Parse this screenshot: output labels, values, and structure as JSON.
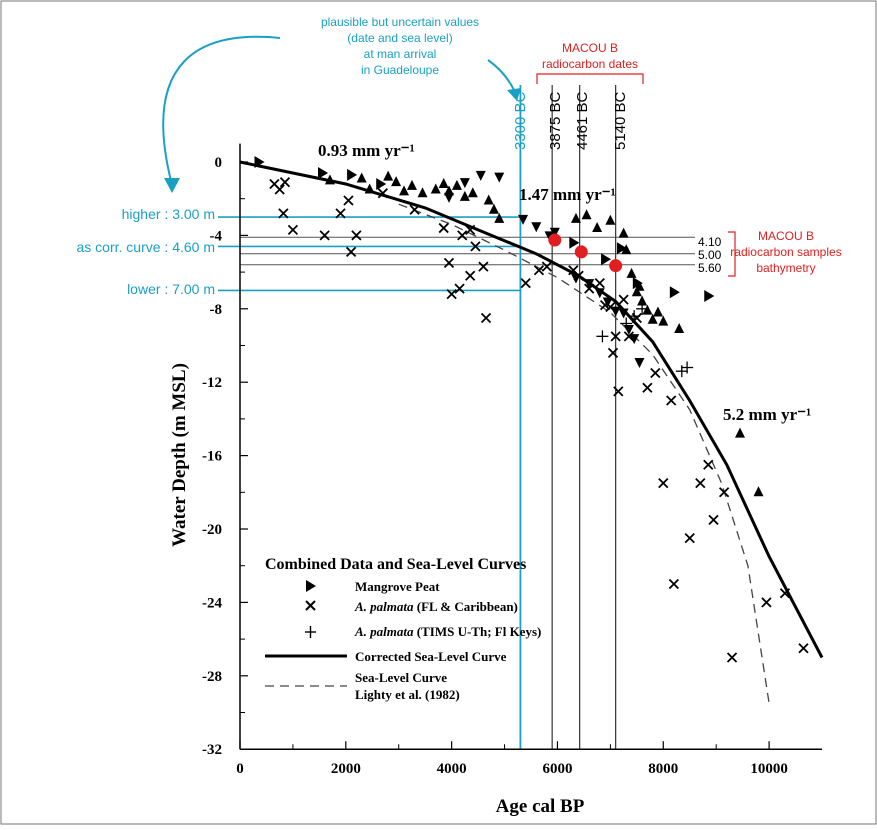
{
  "chart_data": {
    "type": "scatter",
    "xlabel": "Age cal BP",
    "ylabel": "Water Depth (m MSL)",
    "xlim": [
      0,
      11000
    ],
    "ylim": [
      -32,
      1
    ],
    "xticks": [
      "0",
      "2000",
      "4000",
      "6000",
      "8000",
      "10000"
    ],
    "yticks": [
      "0",
      "-4",
      "-8",
      "-12",
      "-16",
      "-20",
      "-24",
      "-28",
      "-32"
    ],
    "xtick_values": [
      0,
      2000,
      4000,
      6000,
      8000,
      10000
    ],
    "ytick_values": [
      0,
      -4,
      -8,
      -12,
      -16,
      -20,
      -24,
      -28,
      -32
    ],
    "legend": {
      "title": "Combined Data and Sea-Level Curves",
      "entries": [
        {
          "label": "Mangrove Peat",
          "italic_prefix": "",
          "marker": "triangle-right"
        },
        {
          "label": " (FL & Caribbean)",
          "italic_prefix": "A. palmata",
          "marker": "x"
        },
        {
          "label": " (TIMS U-Th; Fl Keys)",
          "italic_prefix": "A. palmata",
          "marker": "plus"
        },
        {
          "label": "Corrected Sea-Level Curve",
          "italic_prefix": "",
          "marker": "solid-line"
        },
        {
          "label": "Sea-Level Curve",
          "label2": "Lighty et al. (1982)",
          "italic_prefix": "",
          "marker": "dashed-line"
        }
      ]
    },
    "rates": [
      "0.93 mm yr⁻¹",
      "1.47 mm yr⁻¹",
      "5.2 mm yr⁻¹"
    ],
    "series": [
      {
        "name": "Corrected Sea-Level Curve",
        "style": "solid",
        "points": [
          [
            0,
            0
          ],
          [
            2000,
            -1.2
          ],
          [
            3500,
            -2.5
          ],
          [
            4500,
            -3.7
          ],
          [
            5600,
            -5.0
          ],
          [
            6400,
            -6.2
          ],
          [
            7100,
            -7.6
          ],
          [
            7800,
            -9.8
          ],
          [
            8500,
            -13
          ],
          [
            9200,
            -16.5
          ],
          [
            10000,
            -21.5
          ],
          [
            11000,
            -27
          ]
        ]
      },
      {
        "name": "Sea-Level Curve Lighty et al. (1982)",
        "style": "dashed",
        "points": [
          [
            3000,
            -2.3
          ],
          [
            4000,
            -3.4
          ],
          [
            5000,
            -4.8
          ],
          [
            6000,
            -6.3
          ],
          [
            7000,
            -8.2
          ],
          [
            7800,
            -10.5
          ],
          [
            8500,
            -13.5
          ],
          [
            9100,
            -17.5
          ],
          [
            9600,
            -22
          ],
          [
            10000,
            -29.5
          ]
        ]
      },
      {
        "name": "Mangrove Peat",
        "marker": "triangle-right",
        "points": [
          [
            350,
            0
          ],
          [
            1550,
            -0.6
          ],
          [
            2100,
            -0.7
          ],
          [
            2650,
            -1.2
          ],
          [
            6300,
            -4.4
          ],
          [
            7200,
            -4.7
          ],
          [
            7500,
            -6.6
          ],
          [
            8200,
            -7.1
          ],
          [
            8850,
            -7.3
          ],
          [
            6900,
            -5.3
          ]
        ]
      },
      {
        "name": "Mangrove Peat (upward)",
        "marker": "triangle-up",
        "points": [
          [
            1700,
            -1.0
          ],
          [
            2300,
            -0.9
          ],
          [
            2450,
            -1.5
          ],
          [
            2800,
            -0.8
          ],
          [
            2950,
            -1.1
          ],
          [
            3100,
            -1.6
          ],
          [
            3250,
            -1.3
          ],
          [
            3450,
            -1.7
          ],
          [
            3700,
            -1.5
          ],
          [
            3850,
            -1.2
          ],
          [
            3950,
            -1.6
          ],
          [
            4100,
            -1.3
          ],
          [
            4250,
            -1.9
          ],
          [
            4400,
            -1.7
          ],
          [
            4700,
            -2.1
          ],
          [
            4800,
            -2.6
          ],
          [
            4900,
            -3.1
          ],
          [
            6350,
            -3.1
          ],
          [
            6550,
            -2.9
          ],
          [
            6750,
            -3.6
          ],
          [
            7000,
            -3.2
          ],
          [
            7250,
            -3.9
          ],
          [
            7300,
            -4.8
          ],
          [
            7400,
            -6.1
          ],
          [
            7500,
            -7.1
          ],
          [
            7550,
            -6.8
          ],
          [
            7600,
            -7.6
          ],
          [
            7700,
            -8.1
          ],
          [
            7800,
            -8.6
          ],
          [
            7900,
            -8.2
          ],
          [
            8000,
            -8.7
          ],
          [
            8300,
            -9.1
          ],
          [
            9450,
            -14.8
          ],
          [
            9800,
            -18.0
          ]
        ]
      },
      {
        "name": "Mangrove Peat (downward)",
        "marker": "triangle-down",
        "points": [
          [
            3950,
            -1.9
          ],
          [
            4250,
            -1.1
          ],
          [
            4550,
            -0.7
          ],
          [
            4900,
            -0.8
          ],
          [
            5350,
            -3.1
          ],
          [
            5600,
            -3.5
          ],
          [
            5850,
            -4.0
          ],
          [
            5950,
            -3.8
          ],
          [
            6350,
            -6.3
          ],
          [
            6600,
            -6.6
          ],
          [
            6800,
            -7.1
          ],
          [
            6950,
            -7.6
          ],
          [
            7100,
            -8.1
          ],
          [
            7250,
            -8.2
          ],
          [
            7350,
            -9.1
          ],
          [
            7450,
            -9.6
          ],
          [
            7550,
            -10.9
          ]
        ]
      },
      {
        "name": "A. palmata (FL & Caribbean)",
        "marker": "x",
        "points": [
          [
            650,
            -1.2
          ],
          [
            750,
            -1.5
          ],
          [
            850,
            -1.1
          ],
          [
            820,
            -2.8
          ],
          [
            1000,
            -3.7
          ],
          [
            1600,
            -4.0
          ],
          [
            2050,
            -2.1
          ],
          [
            2100,
            -4.9
          ],
          [
            2200,
            -4.0
          ],
          [
            1900,
            -2.8
          ],
          [
            2700,
            -1.7
          ],
          [
            3300,
            -2.6
          ],
          [
            3850,
            -3.6
          ],
          [
            3950,
            -5.5
          ],
          [
            4000,
            -7.2
          ],
          [
            4150,
            -6.9
          ],
          [
            4200,
            -4.0
          ],
          [
            4350,
            -3.7
          ],
          [
            4350,
            -6.2
          ],
          [
            4450,
            -4.6
          ],
          [
            4600,
            -5.7
          ],
          [
            4650,
            -8.5
          ],
          [
            5400,
            -6.6
          ],
          [
            5800,
            -5.7
          ],
          [
            5650,
            -5.9
          ],
          [
            6300,
            -5.9
          ],
          [
            6400,
            -6.2
          ],
          [
            6600,
            -6.9
          ],
          [
            6800,
            -6.6
          ],
          [
            6900,
            -7.8
          ],
          [
            7000,
            -7.9
          ],
          [
            7050,
            -10.4
          ],
          [
            7100,
            -9.5
          ],
          [
            7150,
            -12.5
          ],
          [
            7250,
            -7.5
          ],
          [
            7350,
            -9.5
          ],
          [
            7500,
            -8.5
          ],
          [
            7700,
            -12.3
          ],
          [
            7850,
            -11.5
          ],
          [
            8000,
            -17.5
          ],
          [
            8150,
            -13.0
          ],
          [
            8200,
            -23.0
          ],
          [
            8500,
            -20.5
          ],
          [
            8700,
            -17.5
          ],
          [
            8850,
            -16.5
          ],
          [
            8950,
            -19.5
          ],
          [
            9150,
            -18.0
          ],
          [
            9300,
            -27.0
          ],
          [
            9950,
            -24.0
          ],
          [
            10300,
            -23.5
          ],
          [
            10650,
            -26.5
          ]
        ]
      },
      {
        "name": "A. palmata (TIMS U-Th; Fl Keys)",
        "marker": "plus",
        "points": [
          [
            6850,
            -9.5
          ],
          [
            7300,
            -8.8
          ],
          [
            7450,
            -8.4
          ],
          [
            7600,
            -8.0
          ],
          [
            8350,
            -11.4
          ],
          [
            8450,
            -11.2
          ]
        ]
      }
    ],
    "reference_lines": {
      "vertical": [
        {
          "label": "3300 BC",
          "x": 5300,
          "color": "#1aa0c4"
        },
        {
          "label": "3875 BC",
          "x": 5900,
          "color": "#333333"
        },
        {
          "label": "4461 BC",
          "x": 6420,
          "color": "#333333"
        },
        {
          "label": "5140 BC",
          "x": 7100,
          "color": "#333333"
        }
      ],
      "horizontal_cyan": [
        {
          "label": "higher : 3.00 m",
          "y": -3.0
        },
        {
          "label": "as corr. curve : 4.60 m",
          "y": -4.6
        },
        {
          "label": "lower : 7.00 m",
          "y": -7.0
        }
      ],
      "horizontal_gray": [
        {
          "label": "4.10",
          "y": -4.1
        },
        {
          "label": "5.00",
          "y": -5.0
        },
        {
          "label": "5.60",
          "y": -5.6
        }
      ]
    },
    "macou_samples": [
      [
        5950,
        -4.25
      ],
      [
        6450,
        -4.9
      ],
      [
        7100,
        -5.65
      ]
    ],
    "annotations": {
      "cyan_note": [
        "plausible but uncertain values",
        "(date and sea level)",
        "at man arrival",
        "in Guadeloupe"
      ],
      "macou_dates_title": [
        "MACOU B",
        "radiocarbon dates"
      ],
      "macou_bathy": [
        "MACOU B",
        "radiocarbon samples",
        "bathymetry"
      ]
    },
    "colors": {
      "cyan": "#1aa0c4",
      "red": "#e02020",
      "black": "#000000",
      "gray": "#555555"
    }
  }
}
